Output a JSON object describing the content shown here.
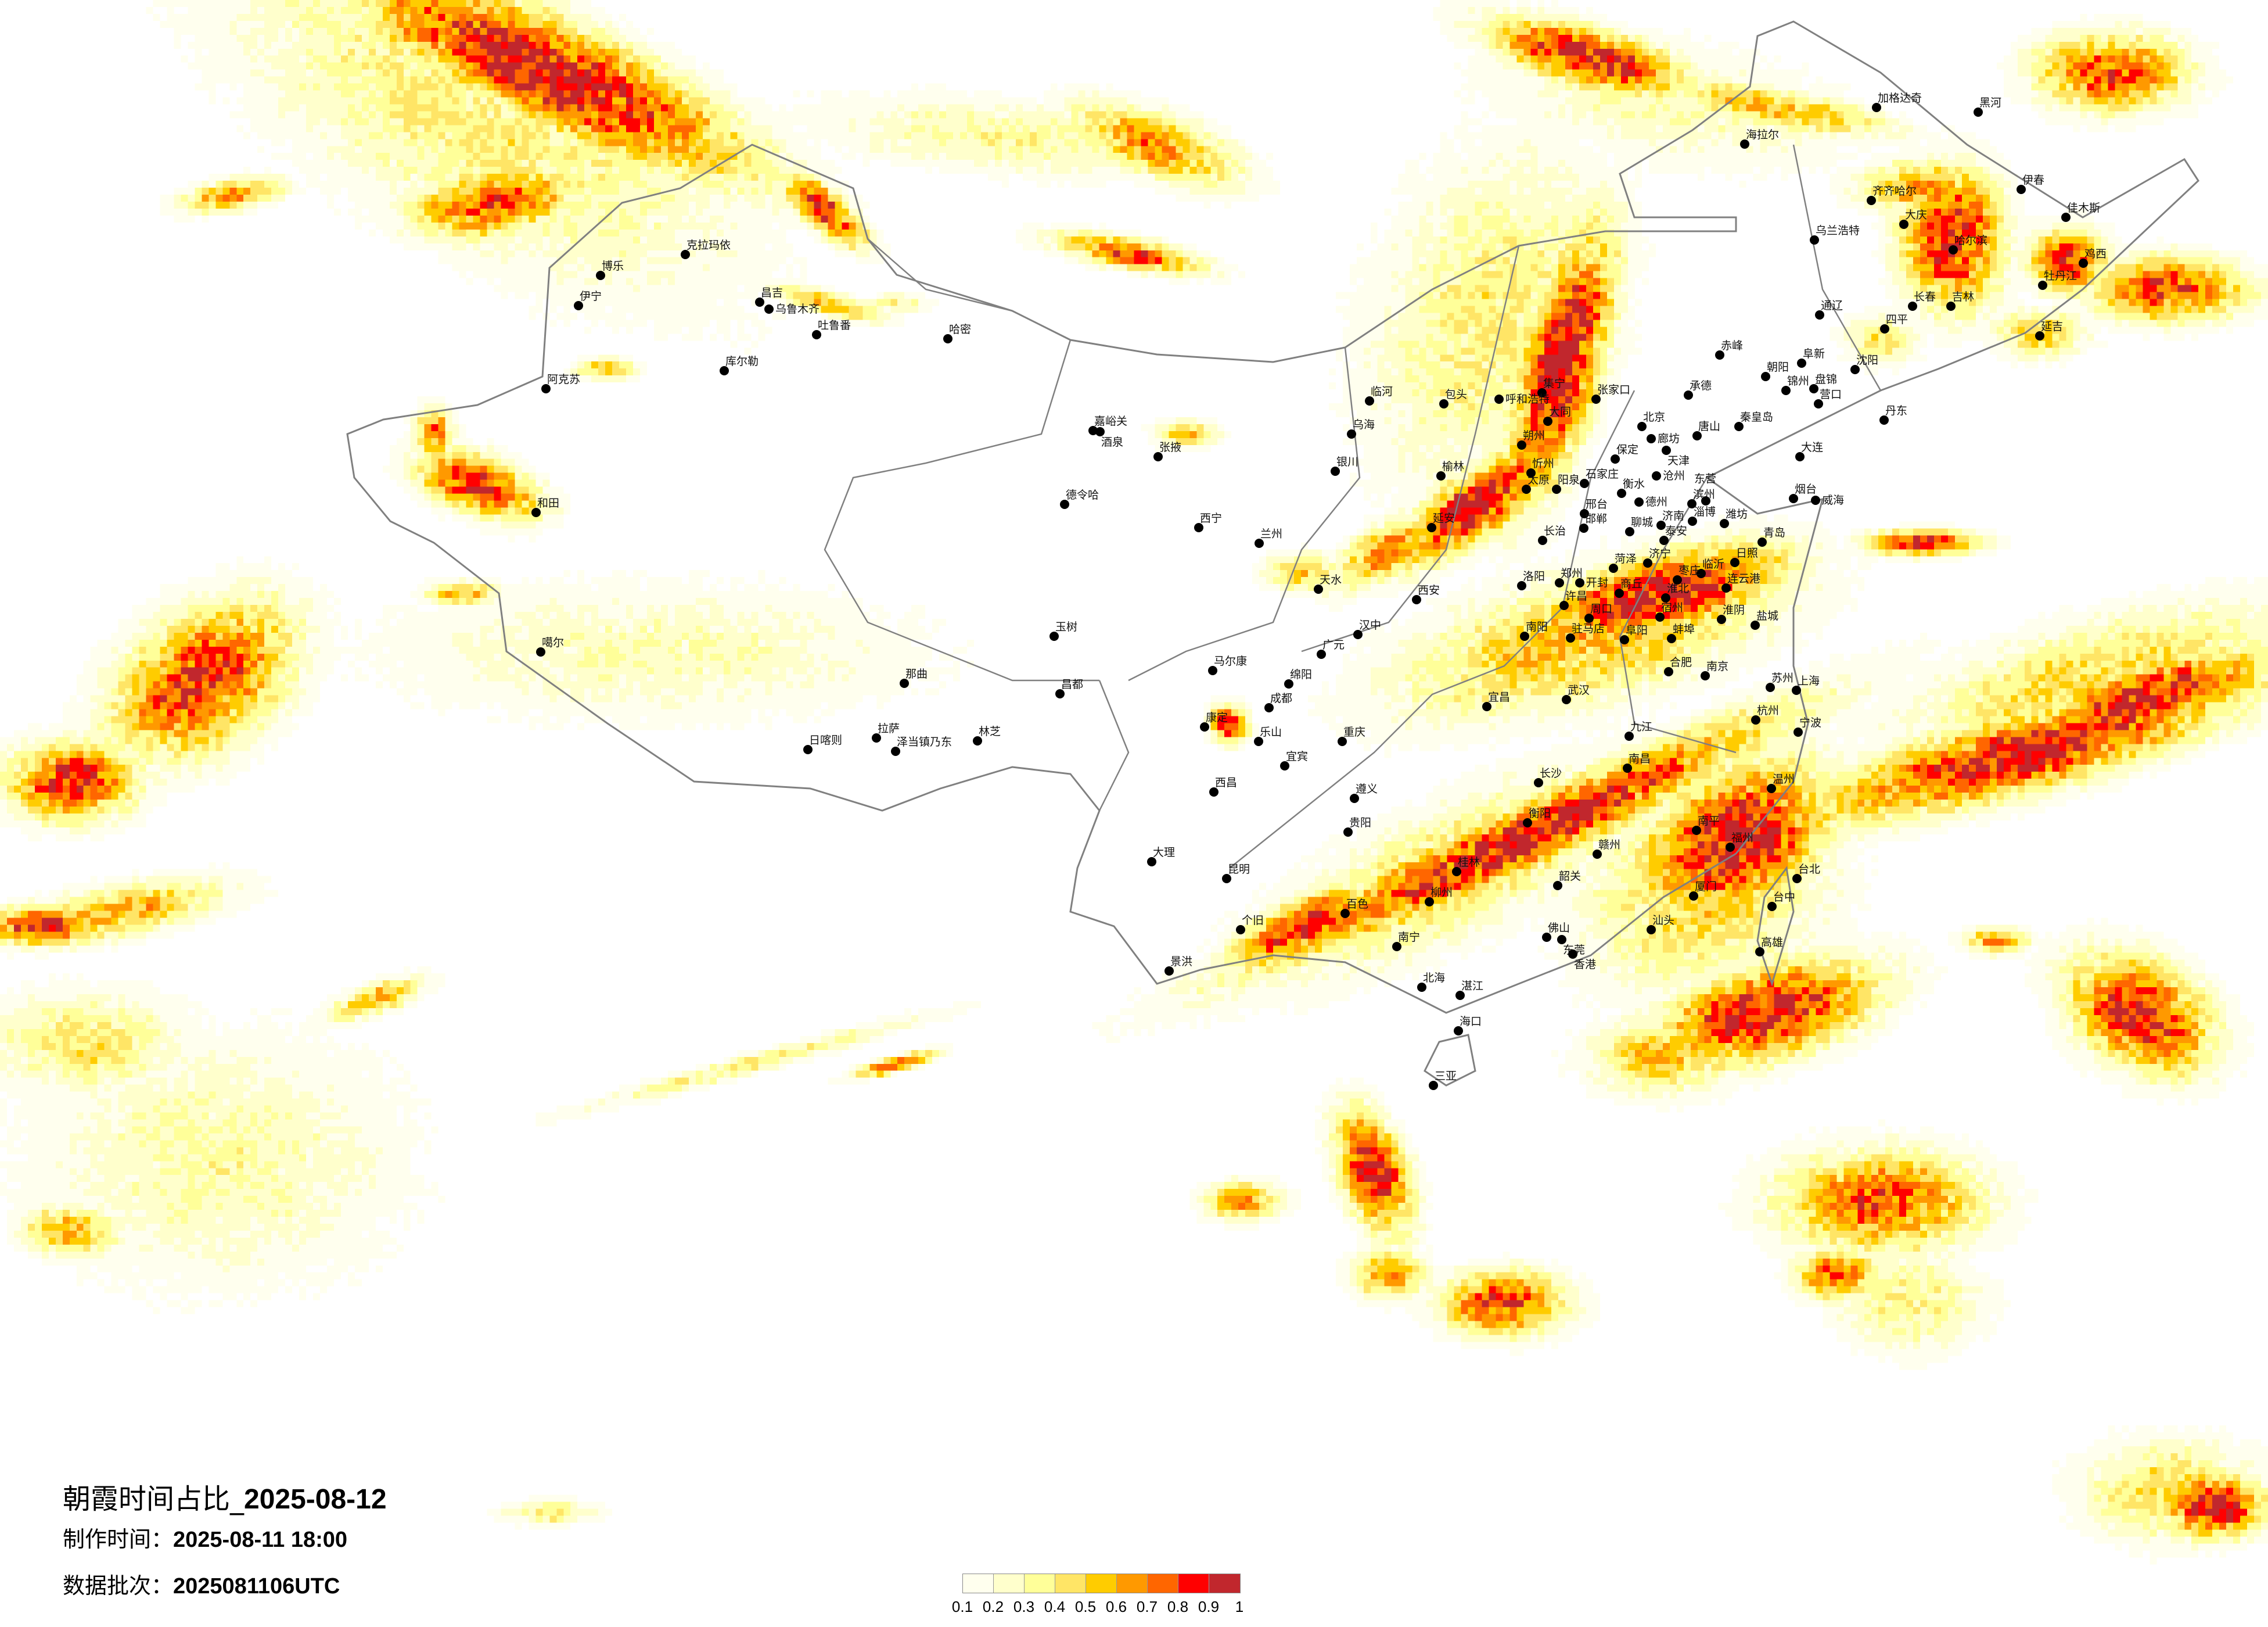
{
  "title": {
    "main_prefix": "朝霞时间占比_",
    "main_date": "2025-08-12",
    "made_label": "制作时间：",
    "made_value": "2025-08-11 18:00",
    "batch_label": "数据批次：",
    "batch_value": "2025081106UTC"
  },
  "legend": {
    "labels": [
      "0.1",
      "0.2",
      "0.3",
      "0.4",
      "0.5",
      "0.6",
      "0.7",
      "0.8",
      "0.9",
      "1"
    ],
    "colors": [
      "#FFFFEE",
      "#FFFFCC",
      "#FFFF99",
      "#FFE566",
      "#FFCC00",
      "#FF9900",
      "#FF6600",
      "#FF0000",
      "#C1272D"
    ]
  },
  "map": {
    "border_color": "#808080",
    "city_marker_color": "#000000"
  },
  "cities": [
    "克拉玛依",
    "博乐",
    "伊宁",
    "昌吉",
    "乌鲁木齐",
    "吐鲁番",
    "哈密",
    "库尔勒",
    "阿克苏",
    "和田",
    "张家口",
    "大同",
    "北京",
    "廊坊",
    "天津",
    "唐山",
    "承德",
    "秦皇岛",
    "保定",
    "沧州",
    "石家庄",
    "衡水",
    "德州",
    "邢台",
    "邯郸",
    "济南",
    "聊城",
    "泰安",
    "淄博",
    "潍坊",
    "滨州",
    "东营",
    "烟台",
    "威海",
    "青岛",
    "日照",
    "临沂",
    "济宁",
    "菏泽",
    "枣庄",
    "连云港",
    "商丘",
    "郑州",
    "开封",
    "洛阳",
    "大连",
    "丹东",
    "营口",
    "锦州",
    "盘锦",
    "沈阳",
    "朝阳",
    "阜新",
    "赤峰",
    "太原",
    "阳泉",
    "忻州",
    "朔州",
    "长治",
    "集宁",
    "淮北",
    "宿州",
    "淮阴",
    "盐城",
    "阜阳",
    "蚌埠",
    "许昌",
    "周口",
    "南阳",
    "驻马店",
    "合肥",
    "南京",
    "上海",
    "苏州",
    "杭州",
    "宁波",
    "武汉",
    "南昌",
    "长沙",
    "福州",
    "厦门",
    "台北",
    "台中",
    "高雄",
    "佛山",
    "东莞",
    "香港",
    "赣州",
    "温州",
    "汕头",
    "韶关",
    "宜昌",
    "衡阳",
    "南平",
    "九江",
    "桂林",
    "成都",
    "重庆",
    "贵阳",
    "昆明",
    "南宁",
    "大理",
    "西昌",
    "遵义",
    "柳州",
    "绵阳",
    "广元",
    "乐山",
    "宜宾",
    "马尔康",
    "康定",
    "个旧",
    "百色",
    "景洪",
    "哈尔滨",
    "长春",
    "吉林",
    "齐齐哈尔",
    "大庆",
    "佳木斯",
    "牡丹江",
    "黑河",
    "加格达奇",
    "海拉尔",
    "伊春",
    "延吉",
    "通辽",
    "四平",
    "乌兰浩特",
    "鸡西",
    "兰州",
    "西宁",
    "银川",
    "西安",
    "包头",
    "呼和浩特",
    "嘉峪关",
    "酒泉",
    "张掖",
    "德令哈",
    "延安",
    "天水",
    "汉中",
    "榆林",
    "临河",
    "乌海",
    "玉树",
    "噶尔",
    "那曲",
    "拉萨",
    "日喀则",
    "泽当镇乃东",
    "林芝",
    "昌都",
    "海口",
    "三亚",
    "湛江",
    "北海"
  ]
}
